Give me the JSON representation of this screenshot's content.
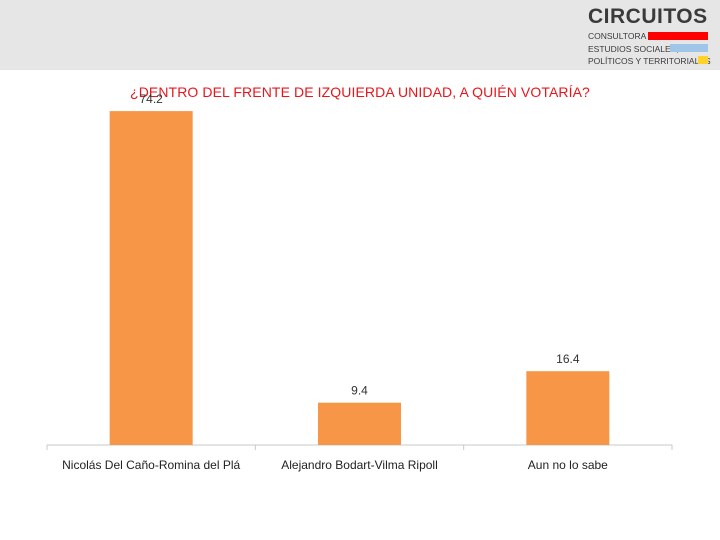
{
  "header": {
    "logo": {
      "name": "CIRCUITOS",
      "lines": [
        "CONSULTORA DE",
        "ESTUDIOS SOCIALES,",
        "POLÍTICOS Y TERRITORIALES"
      ]
    }
  },
  "colors": {
    "bar": "#f79646",
    "title": "#e8161b",
    "header_band": "#e6e6e6"
  },
  "chart_data": {
    "type": "bar",
    "title": "¿DENTRO DEL FRENTE DE IZQUIERDA UNIDAD, A QUIÉN VOTARÍA?",
    "categories": [
      "Nicolás Del Caño-Romina del Plá",
      "Alejandro Bodart-Vilma Ripoll",
      "Aun no lo sabe"
    ],
    "values": [
      74.2,
      9.4,
      16.4
    ],
    "value_labels": [
      "74.2",
      "9.4",
      "16.4"
    ],
    "xlabel": "",
    "ylabel": "",
    "ylim": [
      0,
      80
    ],
    "grid": false,
    "legend": "none"
  }
}
